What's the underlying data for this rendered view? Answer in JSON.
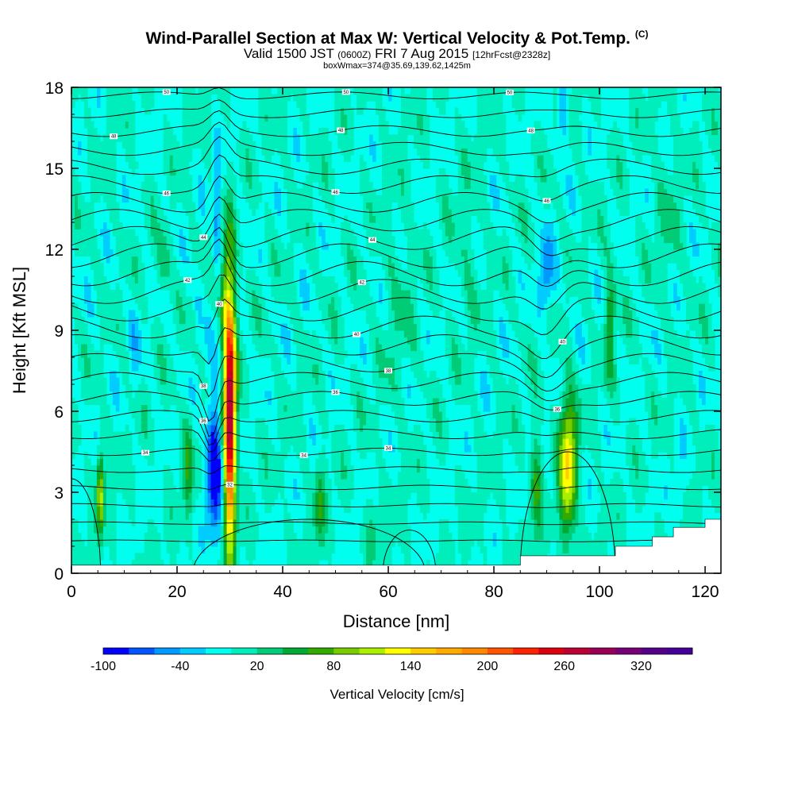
{
  "header": {
    "title_main": "Wind-Parallel Section at Max W: Vertical Velocity & Pot.Temp.",
    "title_copyright": "(C)",
    "subtitle_valid": "Valid 1500 JST",
    "subtitle_utc": "(0600Z)",
    "subtitle_date": "FRI 7 Aug 2015",
    "subtitle_fcst": "[12hrFcst@2328z]",
    "boxinfo": "boxWmax=374@35.69,139.62,1425m"
  },
  "chart_data": {
    "type": "heatmap",
    "xlabel": "Distance [nm]",
    "ylabel": "Height [Kft MSL]",
    "xlim": [
      0,
      123
    ],
    "ylim": [
      0,
      18
    ],
    "xticks": [
      "0",
      "20",
      "40",
      "60",
      "80",
      "100",
      "120"
    ],
    "yticks": [
      "0",
      "3",
      "6",
      "9",
      "12",
      "15",
      "18"
    ],
    "background_value_cm_s": 0,
    "features": [
      {
        "name": "updraft",
        "x": 30,
        "y": 6,
        "peak_w": 300
      },
      {
        "name": "updraft",
        "x": 29,
        "y": 10.5,
        "peak_w": 60
      },
      {
        "name": "downdraft",
        "x": 27,
        "y": 4,
        "peak_w": -100
      },
      {
        "name": "downdraft",
        "x": 27.5,
        "y": 13,
        "peak_w": -40
      },
      {
        "name": "downdraft",
        "x": 23,
        "y": 10,
        "peak_w": -20
      },
      {
        "name": "updraft",
        "x": 5.5,
        "y": 3,
        "peak_w": 120
      },
      {
        "name": "updraft",
        "x": 22,
        "y": 4,
        "peak_w": 60
      },
      {
        "name": "updraft",
        "x": 47,
        "y": 2.5,
        "peak_w": 60
      },
      {
        "name": "updraft",
        "x": 88,
        "y": 3.5,
        "peak_w": 60
      },
      {
        "name": "updraft",
        "x": 94,
        "y": 4,
        "peak_w": 140
      },
      {
        "name": "updraft",
        "x": 102,
        "y": 9.5,
        "peak_w": 60
      },
      {
        "name": "downdraft",
        "x": 90,
        "y": 11,
        "peak_w": -60
      },
      {
        "name": "downdraft",
        "x": 93,
        "y": 17,
        "peak_w": -40
      },
      {
        "name": "updraft",
        "x": 17.5,
        "y": 11.5,
        "peak_w": 40
      }
    ],
    "theta_contour_labels": [
      "50",
      "50",
      "50",
      "48",
      "48",
      "48",
      "46",
      "46",
      "46",
      "44",
      "44",
      "42",
      "42",
      "40",
      "40",
      "40",
      "38",
      "38",
      "36",
      "36",
      "36",
      "34",
      "34",
      "34",
      "32"
    ],
    "colorbar": {
      "title": "Vertical Velocity [cm/s]",
      "tick_labels": [
        "-100",
        "-40",
        "20",
        "80",
        "140",
        "200",
        "260",
        "320"
      ],
      "tick_values": [
        -100,
        -40,
        20,
        80,
        140,
        200,
        260,
        320
      ],
      "min": -100,
      "max": 360,
      "bin_width": 20,
      "colors": [
        "#0000ff",
        "#0055ff",
        "#0099ff",
        "#00ccff",
        "#00ffee",
        "#00eebb",
        "#00cc77",
        "#00aa33",
        "#33aa00",
        "#77cc00",
        "#aaee00",
        "#ffff00",
        "#ffcc00",
        "#ffaa00",
        "#ff8800",
        "#ff5500",
        "#ff2200",
        "#dd0011",
        "#bb0033",
        "#990055",
        "#770077",
        "#550088",
        "#440099"
      ]
    }
  }
}
